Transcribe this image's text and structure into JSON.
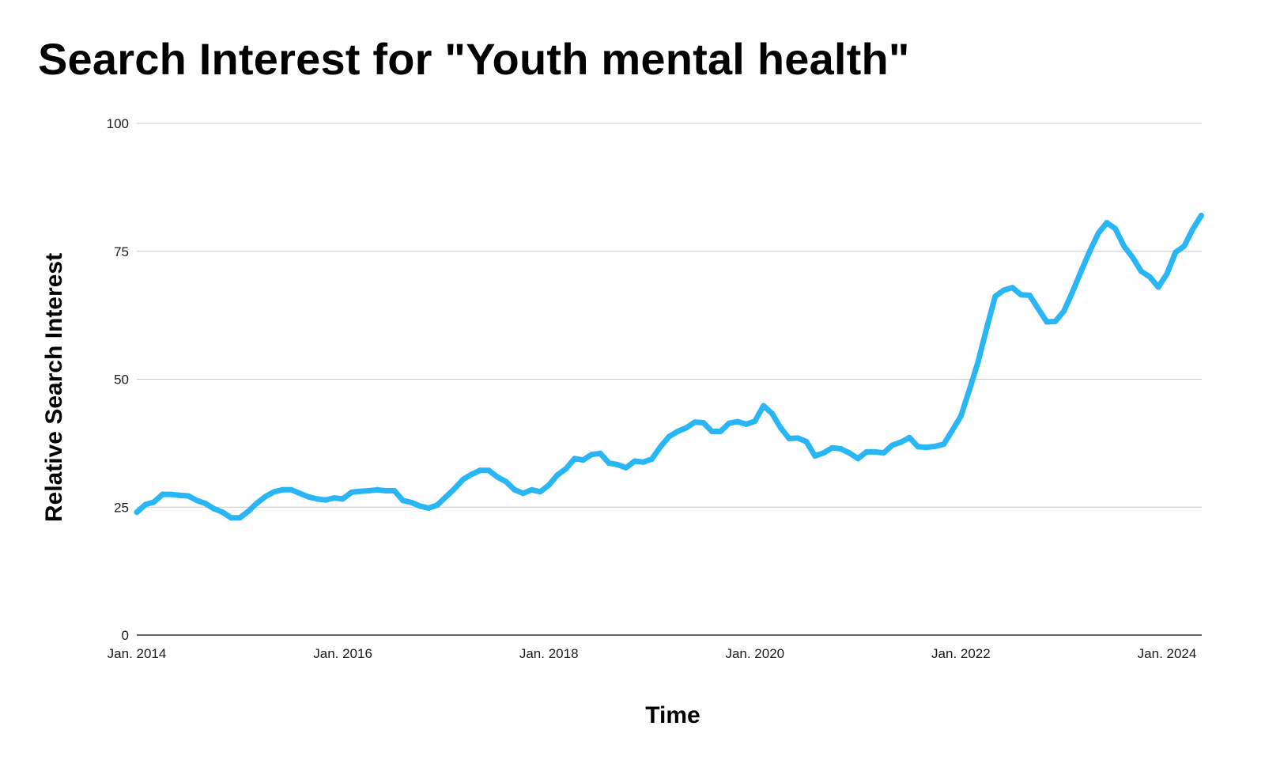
{
  "chart_data": {
    "type": "line",
    "title": "Search Interest for \"Youth mental health\"",
    "xlabel": "Time",
    "ylabel": "Relative Search Interest",
    "ylim": [
      0,
      100
    ],
    "yticks": [
      "0",
      "25",
      "50",
      "75",
      "100"
    ],
    "xlim": [
      "2014-01",
      "2024-05"
    ],
    "xticks": [
      {
        "date": "2014-01",
        "label": "Jan. 2014"
      },
      {
        "date": "2016-01",
        "label": "Jan. 2016"
      },
      {
        "date": "2018-01",
        "label": "Jan. 2018"
      },
      {
        "date": "2020-01",
        "label": "Jan. 2020"
      },
      {
        "date": "2022-01",
        "label": "Jan. 2022"
      },
      {
        "date": "2024-01",
        "label": "Jan. 2024"
      }
    ],
    "grid": true,
    "legend": "none",
    "series_color": "#29B6F6",
    "series": [
      {
        "x": [
          "2014-01",
          "2014-02",
          "2014-03",
          "2014-04",
          "2014-05",
          "2014-06",
          "2014-07",
          "2014-08",
          "2014-09",
          "2014-10",
          "2014-11",
          "2014-12",
          "2015-01",
          "2015-02",
          "2015-03",
          "2015-04",
          "2015-05",
          "2015-06",
          "2015-07",
          "2015-08",
          "2015-09",
          "2015-10",
          "2015-11",
          "2015-12",
          "2016-01",
          "2016-02",
          "2016-03",
          "2016-04",
          "2016-05",
          "2016-06",
          "2016-07",
          "2016-08",
          "2016-09",
          "2016-10",
          "2016-11",
          "2016-12",
          "2017-01",
          "2017-02",
          "2017-03",
          "2017-04",
          "2017-05",
          "2017-06",
          "2017-07",
          "2017-08",
          "2017-09",
          "2017-10",
          "2017-11",
          "2017-12",
          "2018-01",
          "2018-02",
          "2018-03",
          "2018-04",
          "2018-05",
          "2018-06",
          "2018-07",
          "2018-08",
          "2018-09",
          "2018-10",
          "2018-11",
          "2018-12",
          "2019-01",
          "2019-02",
          "2019-03",
          "2019-04",
          "2019-05",
          "2019-06",
          "2019-07",
          "2019-08",
          "2019-09",
          "2019-10",
          "2019-11",
          "2019-12",
          "2020-01",
          "2020-02",
          "2020-03",
          "2020-04",
          "2020-05",
          "2020-06",
          "2020-07",
          "2020-08",
          "2020-09",
          "2020-10",
          "2020-11",
          "2020-12",
          "2021-01",
          "2021-02",
          "2021-03",
          "2021-04",
          "2021-05",
          "2021-06",
          "2021-07",
          "2021-08",
          "2021-09",
          "2021-10",
          "2021-11",
          "2021-12",
          "2022-01",
          "2022-02",
          "2022-03",
          "2022-04",
          "2022-05",
          "2022-06",
          "2022-07",
          "2022-08",
          "2022-09",
          "2022-10",
          "2022-11",
          "2022-12",
          "2023-01",
          "2023-02",
          "2023-03",
          "2023-04",
          "2023-05",
          "2023-06",
          "2023-07",
          "2023-08",
          "2023-09",
          "2023-10",
          "2023-11",
          "2023-12",
          "2024-01",
          "2024-02",
          "2024-03",
          "2024-04",
          "2024-05"
        ],
        "values": [
          24,
          25.5,
          26,
          27.5,
          27.5,
          27.3,
          27.2,
          26.3,
          25.7,
          24.7,
          24.0,
          22.9,
          22.9,
          24.2,
          25.8,
          27.1,
          28.0,
          28.4,
          28.4,
          27.7,
          27.0,
          26.6,
          26.4,
          26.8,
          26.6,
          27.9,
          28.1,
          28.2,
          28.4,
          28.2,
          28.2,
          26.3,
          25.9,
          25.2,
          24.8,
          25.4,
          27.0,
          28.6,
          30.4,
          31.4,
          32.2,
          32.2,
          30.9,
          30.0,
          28.4,
          27.7,
          28.4,
          28.0,
          29.3,
          31.3,
          32.5,
          34.5,
          34.2,
          35.3,
          35.5,
          33.6,
          33.3,
          32.7,
          34.0,
          33.8,
          34.4,
          36.8,
          38.8,
          39.8,
          40.5,
          41.6,
          41.5,
          39.8,
          39.8,
          41.4,
          41.7,
          41.2,
          41.8,
          44.8,
          43.3,
          40.5,
          38.4,
          38.5,
          37.8,
          35.0,
          35.6,
          36.6,
          36.4,
          35.6,
          34.5,
          35.8,
          35.8,
          35.6,
          37.1,
          37.7,
          38.6,
          36.8,
          36.7,
          36.9,
          37.3,
          40.0,
          42.8,
          48.0,
          53.4,
          60.0,
          66.2,
          67.4,
          67.9,
          66.5,
          66.4,
          63.8,
          61.2,
          61.3,
          63.3,
          67.1,
          71.1,
          75.0,
          78.5,
          80.6,
          79.4,
          76.0,
          73.8,
          71.1,
          70.0,
          68.0,
          70.6,
          74.8,
          76.0,
          79.3,
          82.0
        ]
      }
    ]
  }
}
